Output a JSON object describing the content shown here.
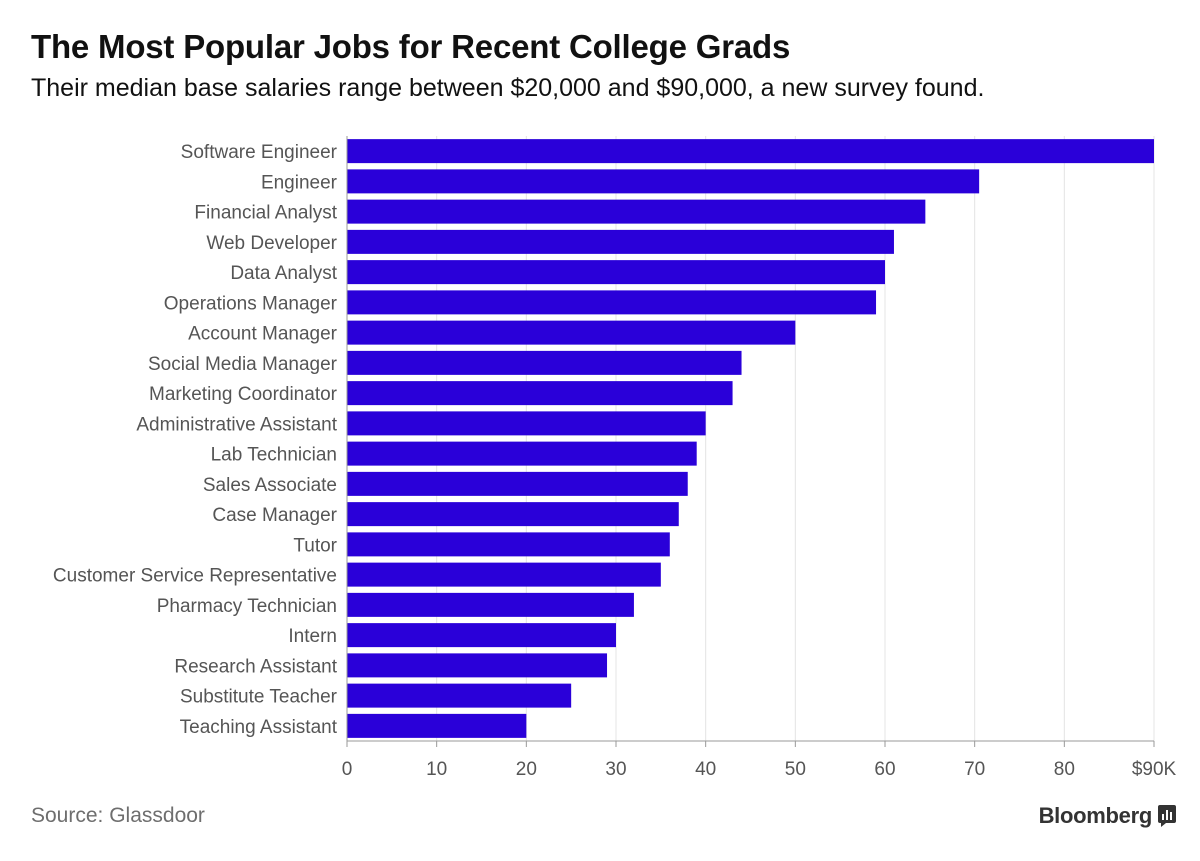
{
  "header": {
    "title": "The Most Popular Jobs for Recent College Grads",
    "subtitle": "Their median base salaries range between $20,000 and $90,000, a new survey found."
  },
  "footer": {
    "source": "Source: Glassdoor",
    "brand": "Bloomberg",
    "brand_icon": "bar-chart-icon"
  },
  "colors": {
    "bar": "#2a00d9",
    "grid": "#e4e4e4",
    "axis": "#999999",
    "label": "#555555"
  },
  "chart_data": {
    "type": "bar",
    "orientation": "horizontal",
    "title": "The Most Popular Jobs for Recent College Grads",
    "subtitle": "Their median base salaries range between $20,000 and $90,000, a new survey found.",
    "categories": [
      "Software Engineer",
      "Engineer",
      "Financial Analyst",
      "Web Developer",
      "Data Analyst",
      "Operations Manager",
      "Account Manager",
      "Social Media Manager",
      "Marketing Coordinator",
      "Administrative Assistant",
      "Lab Technician",
      "Sales Associate",
      "Case Manager",
      "Tutor",
      "Customer Service Representative",
      "Pharmacy Technician",
      "Intern",
      "Research Assistant",
      "Substitute Teacher",
      "Teaching Assistant"
    ],
    "values": [
      90,
      70.5,
      64.5,
      61,
      60,
      59,
      50,
      44,
      43,
      40,
      39,
      38,
      37,
      36,
      35,
      32,
      30,
      29,
      25,
      20
    ],
    "xlim": [
      0,
      90
    ],
    "xticks": [
      0,
      10,
      20,
      30,
      40,
      50,
      60,
      70,
      80,
      90
    ],
    "xtick_labels": [
      "0",
      "10",
      "20",
      "30",
      "40",
      "50",
      "60",
      "70",
      "80",
      "$90K"
    ],
    "xlabel": "",
    "ylabel": "",
    "grid": true,
    "legend": "none"
  }
}
